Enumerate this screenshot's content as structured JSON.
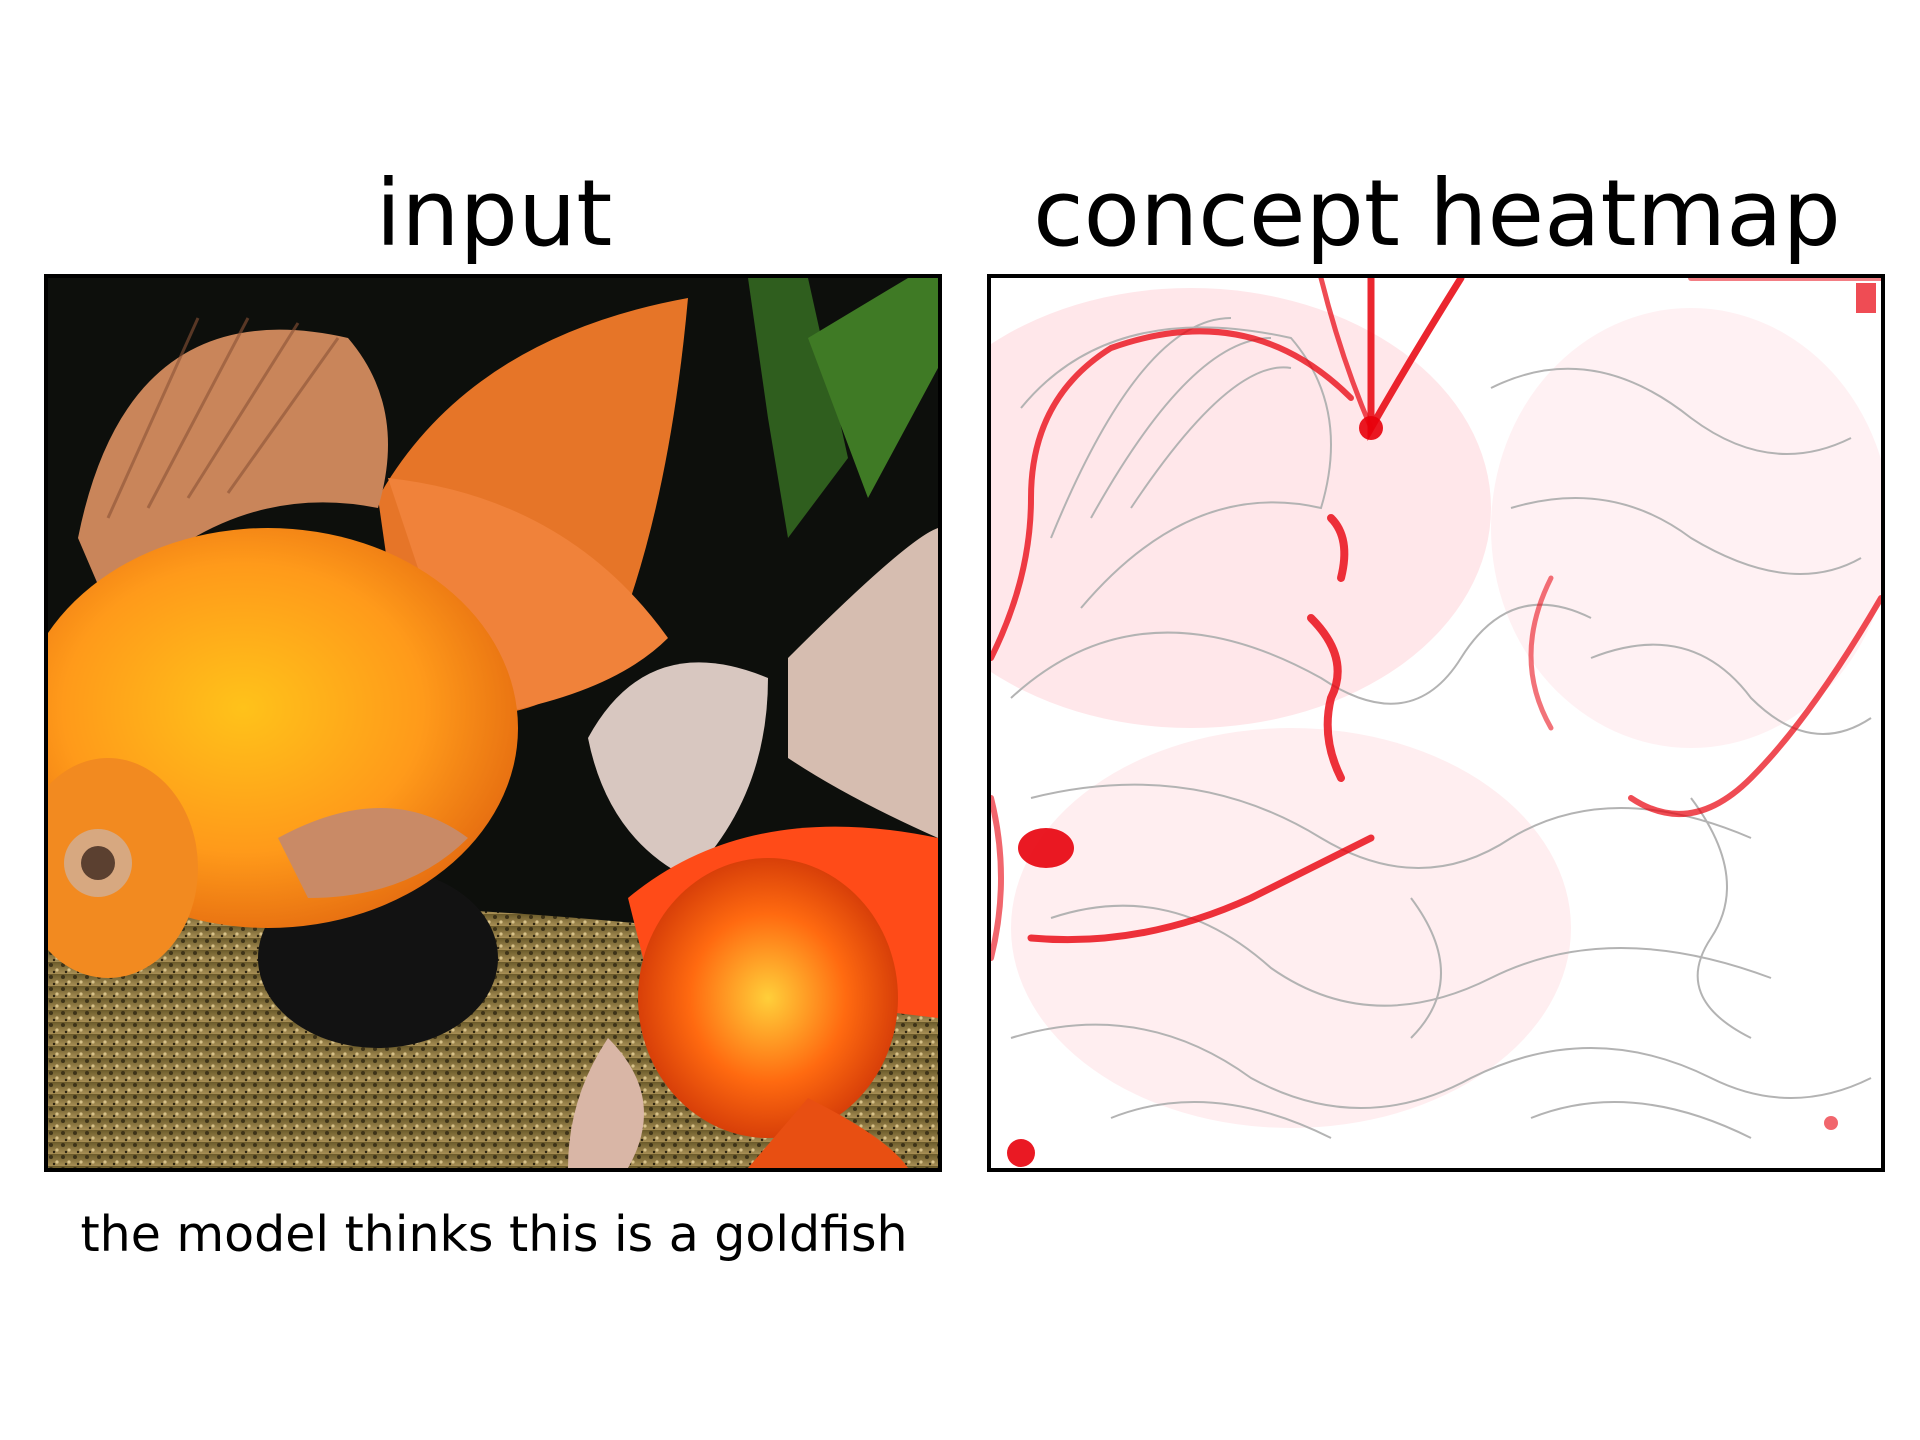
{
  "figure": {
    "input_title": "input",
    "heatmap_title": "concept heatmap",
    "caption": "the model thinks this is a goldfish"
  },
  "images": {
    "input": {
      "description_icon": "goldfish-photo"
    },
    "heatmap": {
      "description_icon": "concept-heatmap",
      "colors": {
        "edge": "#b0b0b0",
        "hot": "#e8000b"
      }
    }
  }
}
